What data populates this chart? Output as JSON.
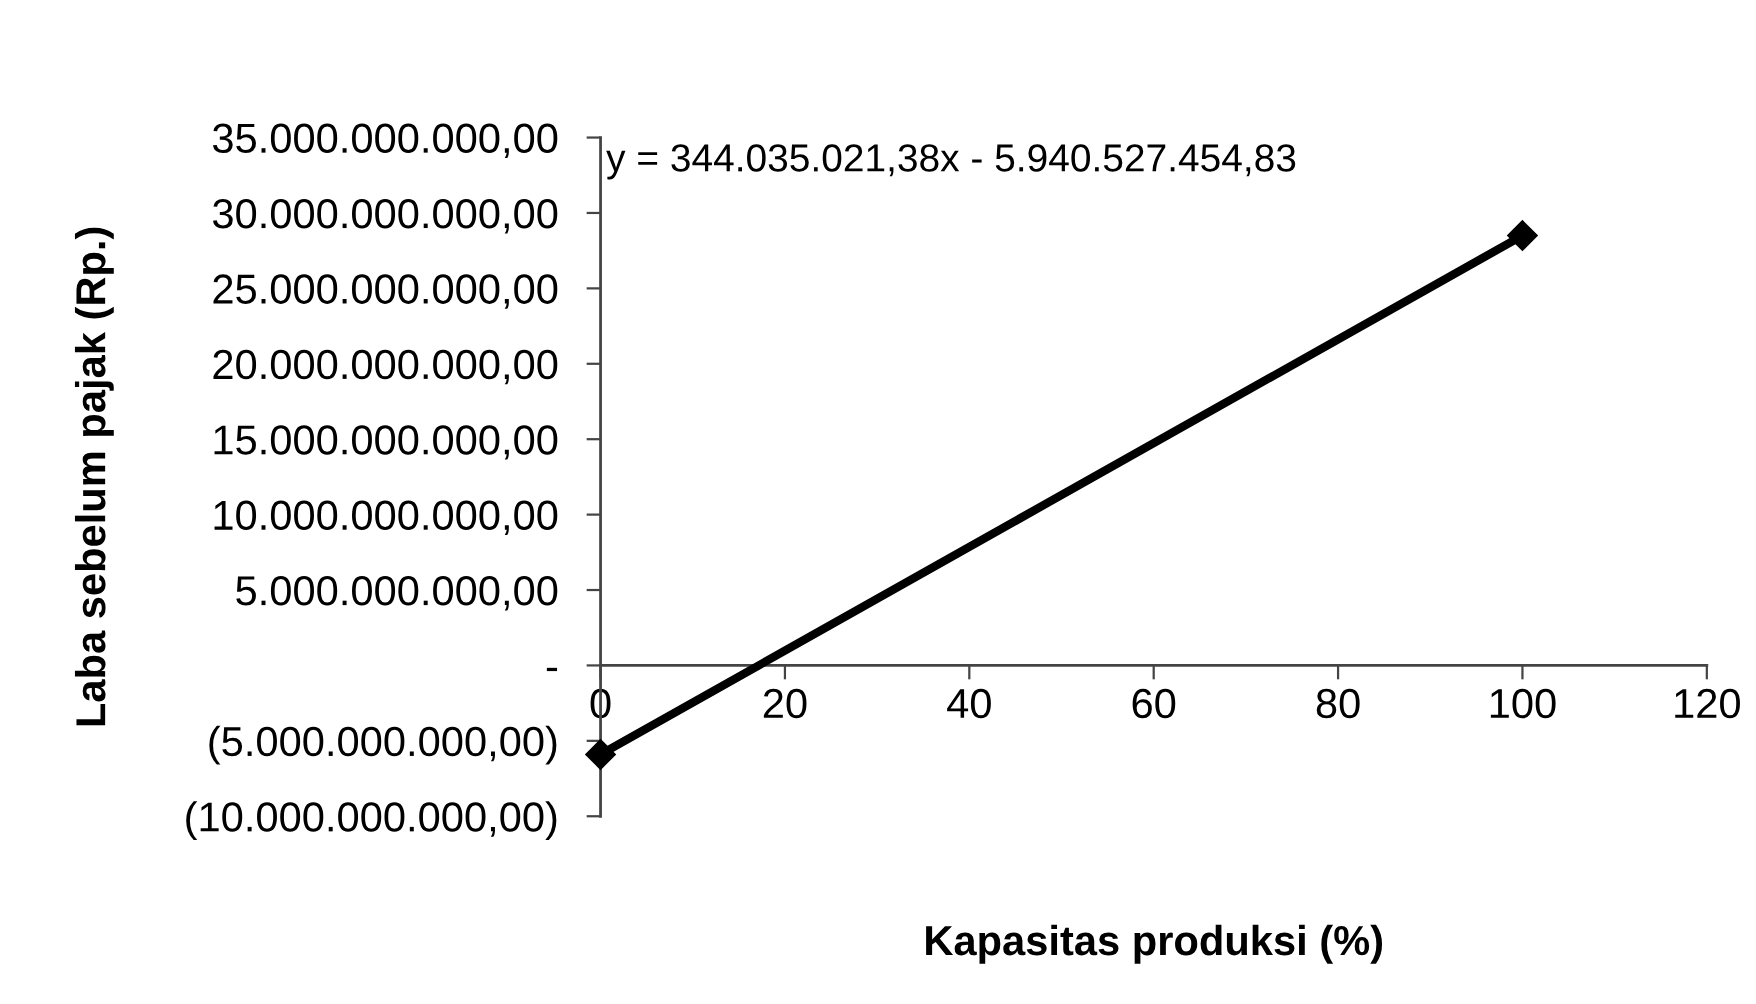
{
  "chart_data": {
    "type": "line",
    "xlabel": "Kapasitas produksi (%)",
    "ylabel": "Laba sebelum pajak (Rp.)",
    "annotations": [
      "y = 344.035.021,38x - 5.940.527.454,83"
    ],
    "x": [
      0,
      100
    ],
    "series": [
      {
        "color": "#000000",
        "values": [
          -5900000000,
          28500000000
        ]
      }
    ],
    "xlim": [
      0,
      120
    ],
    "xticks": [
      0,
      20,
      40,
      60,
      80,
      100,
      120
    ],
    "ylim": [
      -10000000000,
      35000000000
    ],
    "yticks": [
      {
        "value": 35000000000,
        "label": "35.000.000.000,00"
      },
      {
        "value": 30000000000,
        "label": "30.000.000.000,00"
      },
      {
        "value": 25000000000,
        "label": "25.000.000.000,00"
      },
      {
        "value": 20000000000,
        "label": "20.000.000.000,00"
      },
      {
        "value": 15000000000,
        "label": "15.000.000.000,00"
      },
      {
        "value": 10000000000,
        "label": "10.000.000.000,00"
      },
      {
        "value": 5000000000,
        "label": "5.000.000.000,00"
      },
      {
        "value": 0,
        "label": "-"
      },
      {
        "value": -5000000000,
        "label": "(5.000.000.000,00)"
      },
      {
        "value": -10000000000,
        "label": "(10.000.000.000,00)"
      }
    ],
    "marker": "diamond",
    "line_style": "solid"
  }
}
